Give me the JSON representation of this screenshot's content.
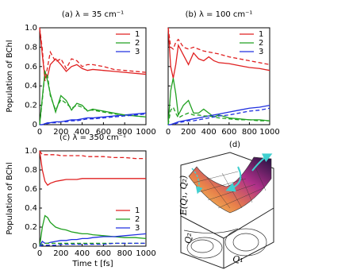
{
  "chart_data": [
    {
      "type": "line",
      "title": "(a) λ = 35 cm⁻¹",
      "y_label": "Population of BChl",
      "x": [
        0,
        25,
        50,
        75,
        100,
        150,
        200,
        250,
        300,
        350,
        400,
        450,
        500,
        600,
        700,
        800,
        900,
        1000
      ],
      "xlim": [
        0,
        1000
      ],
      "xticks": [
        0,
        200,
        400,
        600,
        800,
        1000
      ],
      "ylim": [
        0,
        1
      ],
      "yticks": [
        0,
        0.2,
        0.4,
        0.6,
        0.8,
        {
          "value": 1,
          "label": "1.0"
        }
      ],
      "legend": "upper right",
      "series": [
        {
          "name": "1",
          "color": "#e02020",
          "values": [
            1.0,
            0.72,
            0.48,
            0.5,
            0.62,
            0.68,
            0.62,
            0.55,
            0.6,
            0.62,
            0.58,
            0.56,
            0.57,
            0.56,
            0.55,
            0.54,
            0.53,
            0.52
          ]
        },
        {
          "name": "2",
          "color": "#20a020",
          "values": [
            0,
            0.28,
            0.55,
            0.45,
            0.32,
            0.13,
            0.3,
            0.25,
            0.15,
            0.22,
            0.2,
            0.14,
            0.16,
            0.14,
            0.12,
            0.1,
            0.09,
            0.08
          ]
        },
        {
          "name": "3",
          "color": "#2030e0",
          "values": [
            0,
            0,
            0.01,
            0.02,
            0.02,
            0.03,
            0.03,
            0.04,
            0.05,
            0.05,
            0.06,
            0.07,
            0.07,
            0.08,
            0.09,
            0.1,
            0.11,
            0.12
          ]
        },
        {
          "color": "#e02020",
          "dashed": true,
          "values": [
            1.0,
            0.78,
            0.45,
            0.6,
            0.75,
            0.65,
            0.68,
            0.58,
            0.68,
            0.66,
            0.6,
            0.62,
            0.62,
            0.6,
            0.57,
            0.56,
            0.55,
            0.54
          ]
        },
        {
          "color": "#20a020",
          "dashed": true,
          "values": [
            0,
            0.25,
            0.55,
            0.5,
            0.3,
            0.15,
            0.26,
            0.22,
            0.17,
            0.2,
            0.18,
            0.15,
            0.15,
            0.13,
            0.11,
            0.1,
            0.09,
            0.08
          ]
        },
        {
          "color": "#2030e0",
          "dashed": true,
          "values": [
            0,
            0,
            0.01,
            0.01,
            0.02,
            0.02,
            0.03,
            0.03,
            0.04,
            0.04,
            0.05,
            0.06,
            0.06,
            0.07,
            0.08,
            0.09,
            0.1,
            0.11
          ]
        }
      ]
    },
    {
      "type": "line",
      "title": "(b) λ = 100 cm⁻¹",
      "x": [
        0,
        25,
        50,
        75,
        100,
        150,
        200,
        250,
        300,
        350,
        400,
        450,
        500,
        600,
        700,
        800,
        900,
        1000
      ],
      "xlim": [
        0,
        1000
      ],
      "xticks": [
        0,
        200,
        400,
        600,
        800,
        1000
      ],
      "ylim": [
        0,
        1
      ],
      "yticks": [
        0,
        0.2,
        0.4,
        0.6,
        0.8,
        1
      ],
      "ytick_labels": false,
      "legend": "upper right",
      "series": [
        {
          "name": "1",
          "color": "#e02020",
          "values": [
            1,
            0.6,
            0.48,
            0.62,
            0.82,
            0.72,
            0.62,
            0.74,
            0.68,
            0.66,
            0.7,
            0.66,
            0.64,
            0.63,
            0.61,
            0.59,
            0.58,
            0.56
          ]
        },
        {
          "name": "2",
          "color": "#20a020",
          "values": [
            0,
            0.35,
            0.48,
            0.32,
            0.1,
            0.2,
            0.25,
            0.12,
            0.12,
            0.16,
            0.12,
            0.08,
            0.1,
            0.07,
            0.06,
            0.05,
            0.05,
            0.04
          ]
        },
        {
          "name": "3",
          "color": "#2030e0",
          "values": [
            0,
            0,
            0.01,
            0.02,
            0.03,
            0.04,
            0.05,
            0.06,
            0.07,
            0.08,
            0.09,
            0.1,
            0.11,
            0.13,
            0.15,
            0.17,
            0.18,
            0.2
          ]
        },
        {
          "color": "#e02020",
          "dashed": true,
          "values": [
            1,
            0.8,
            0.78,
            0.85,
            0.88,
            0.8,
            0.78,
            0.8,
            0.78,
            0.76,
            0.75,
            0.74,
            0.73,
            0.7,
            0.68,
            0.66,
            0.64,
            0.62
          ]
        },
        {
          "color": "#20a020",
          "dashed": true,
          "values": [
            0,
            0.15,
            0.18,
            0.12,
            0.07,
            0.1,
            0.12,
            0.1,
            0.1,
            0.09,
            0.09,
            0.08,
            0.07,
            0.06,
            0.05,
            0.05,
            0.04,
            0.04
          ]
        },
        {
          "color": "#2030e0",
          "dashed": true,
          "values": [
            0,
            0,
            0.01,
            0.01,
            0.02,
            0.03,
            0.04,
            0.04,
            0.05,
            0.06,
            0.07,
            0.08,
            0.09,
            0.1,
            0.12,
            0.14,
            0.15,
            0.17
          ]
        }
      ]
    },
    {
      "type": "line",
      "title": "(c) λ = 350 cm⁻¹",
      "y_label": "Population of BChl",
      "x_label": "Time t [fs]",
      "x": [
        0,
        25,
        50,
        75,
        100,
        150,
        200,
        250,
        300,
        350,
        400,
        450,
        500,
        600,
        700,
        800,
        900,
        1000
      ],
      "xlim": [
        0,
        1000
      ],
      "xticks": [
        0,
        200,
        400,
        600,
        800,
        1000
      ],
      "ylim": [
        0,
        1
      ],
      "yticks": [
        0,
        0.2,
        0.4,
        0.6,
        0.8,
        {
          "value": 1,
          "label": "1.0"
        }
      ],
      "legend": "lower right",
      "series": [
        {
          "name": "1",
          "color": "#e02020",
          "values": [
            1,
            0.8,
            0.68,
            0.64,
            0.66,
            0.68,
            0.69,
            0.7,
            0.7,
            0.7,
            0.71,
            0.71,
            0.71,
            0.71,
            0.71,
            0.71,
            0.71,
            0.71
          ]
        },
        {
          "name": "2",
          "color": "#20a020",
          "values": [
            0,
            0.2,
            0.32,
            0.3,
            0.25,
            0.2,
            0.18,
            0.17,
            0.15,
            0.14,
            0.13,
            0.13,
            0.12,
            0.11,
            0.1,
            0.09,
            0.09,
            0.08
          ]
        },
        {
          "name": "3",
          "color": "#2030e0",
          "values": [
            0,
            0.05,
            0.03,
            0.03,
            0.04,
            0.05,
            0.06,
            0.06,
            0.07,
            0.07,
            0.08,
            0.08,
            0.09,
            0.1,
            0.1,
            0.11,
            0.12,
            0.13
          ]
        },
        {
          "color": "#e02020",
          "dashed": true,
          "values": [
            1,
            0.96,
            0.96,
            0.96,
            0.96,
            0.96,
            0.95,
            0.95,
            0.95,
            0.95,
            0.95,
            0.94,
            0.94,
            0.94,
            0.93,
            0.93,
            0.92,
            0.92
          ]
        },
        {
          "color": "#20a020",
          "dashed": true,
          "values": [
            0,
            0.02,
            0.03,
            0.03,
            0.03,
            0.03,
            0.03,
            0.03,
            0.03,
            0.03,
            0.03,
            0.03,
            0.03,
            0.03,
            0.03,
            0.03,
            0.03,
            0.03
          ]
        },
        {
          "color": "#2030e0",
          "dashed": true,
          "values": [
            0,
            0.01,
            0.01,
            0.01,
            0.01,
            0.01,
            0.02,
            0.02,
            0.02,
            0.02,
            0.02,
            0.02,
            0.02,
            0.02,
            0.03,
            0.03,
            0.03,
            0.03
          ]
        }
      ]
    }
  ],
  "diagram": {
    "label": "(d)",
    "z_label": "E(Q₁, Q₂)",
    "x_label": "Q₁",
    "y_label": "Q₂"
  }
}
